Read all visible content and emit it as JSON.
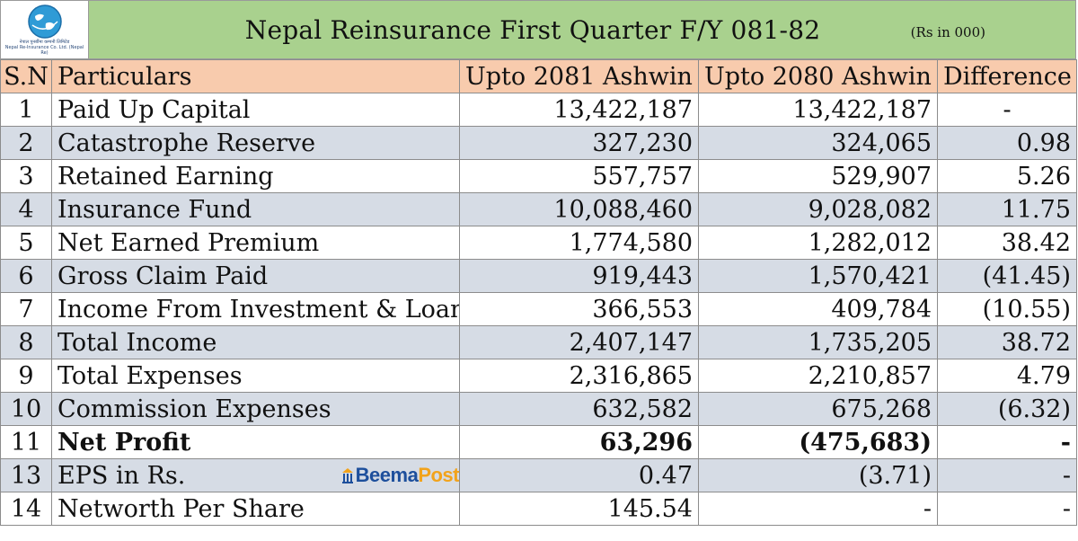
{
  "header": {
    "logo_caption_1": "नेपाल पुनर्बीमा कम्पनी लिमिटेड",
    "logo_caption_2": "Nepal Re-Insurance Co. Ltd. (Nepal Re)",
    "title": "Nepal Reinsurance First Quarter F/Y 081-82",
    "units": "(Rs in 000)"
  },
  "table": {
    "columns": [
      "S.N",
      "Particulars",
      "Upto 2081 Ashwin",
      "Upto 2080 Ashwin",
      "Difference"
    ],
    "rows": [
      {
        "sn": "1",
        "particular": "Paid Up Capital",
        "cur": "13,422,187",
        "prev": "13,422,187",
        "diff": "-"
      },
      {
        "sn": "2",
        "particular": "Catastrophe Reserve",
        "cur": "327,230",
        "prev": "324,065",
        "diff": "0.98"
      },
      {
        "sn": "3",
        "particular": "Retained Earning",
        "cur": "557,757",
        "prev": "529,907",
        "diff": "5.26"
      },
      {
        "sn": "4",
        "particular": "Insurance Fund",
        "cur": "10,088,460",
        "prev": "9,028,082",
        "diff": "11.75"
      },
      {
        "sn": "5",
        "particular": "Net Earned Premium",
        "cur": "1,774,580",
        "prev": "1,282,012",
        "diff": "38.42"
      },
      {
        "sn": "6",
        "particular": "Gross Claim Paid",
        "cur": "919,443",
        "prev": "1,570,421",
        "diff": "(41.45)"
      },
      {
        "sn": "7",
        "particular": "Income From Investment & Loan",
        "cur": "366,553",
        "prev": "409,784",
        "diff": "(10.55)"
      },
      {
        "sn": "8",
        "particular": "Total Income",
        "cur": "2,407,147",
        "prev": "1,735,205",
        "diff": "38.72"
      },
      {
        "sn": "9",
        "particular": "Total Expenses",
        "cur": "2,316,865",
        "prev": "2,210,857",
        "diff": "4.79"
      },
      {
        "sn": "10",
        "particular": "Commission Expenses",
        "cur": "632,582",
        "prev": "675,268",
        "diff": "(6.32)"
      },
      {
        "sn": "11",
        "particular": "Net Profit",
        "cur": "63,296",
        "prev": "(475,683)",
        "diff": "-"
      },
      {
        "sn": "13",
        "particular": "EPS in Rs.",
        "cur": "0.47",
        "prev": "(3.71)",
        "diff": "-"
      },
      {
        "sn": "14",
        "particular": "Networth Per Share",
        "cur": "145.54",
        "prev": "-",
        "diff": "-"
      }
    ]
  },
  "watermark": {
    "part1": "Beema",
    "part2": "Post"
  },
  "colors": {
    "title_bg": "#a9d18e",
    "header_bg": "#f8cbad",
    "band_bg": "#d6dce5"
  }
}
